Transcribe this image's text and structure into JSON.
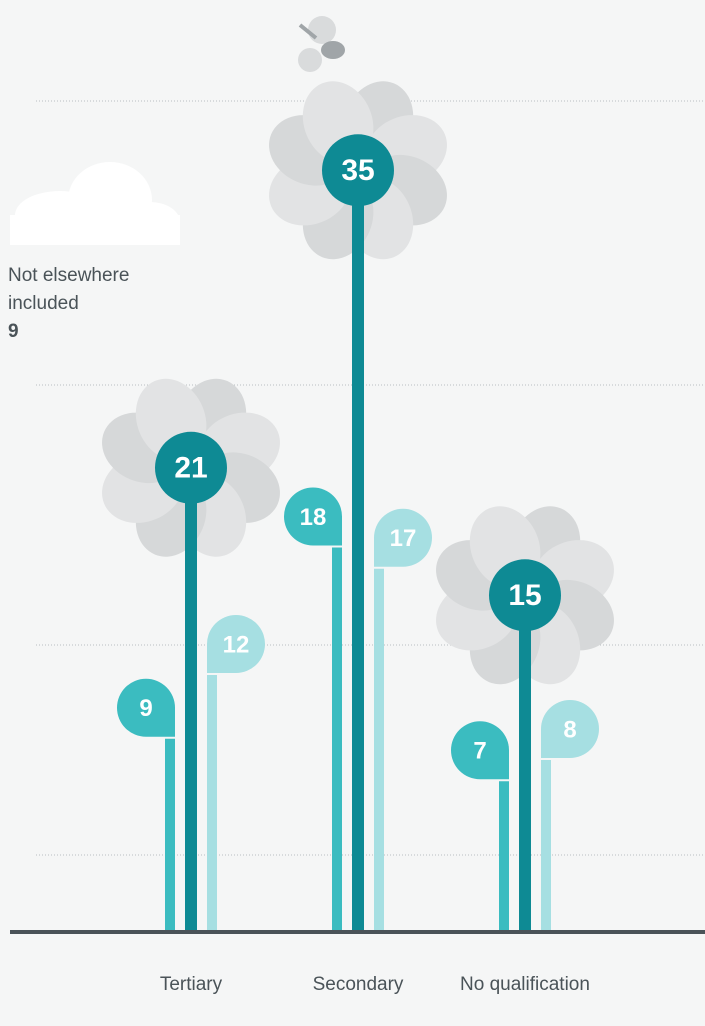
{
  "chart_data": {
    "type": "flower",
    "categories": [
      "Tertiary",
      "Secondary",
      "No qualification"
    ],
    "series": [
      {
        "color": "#3bbcc0",
        "values": [
          9,
          18,
          7
        ]
      },
      {
        "color": "#0e8a94",
        "values": [
          21,
          35,
          15
        ]
      },
      {
        "color": "#a6dfe2",
        "values": [
          12,
          17,
          8
        ]
      }
    ],
    "ylim": [
      0,
      40
    ],
    "annotation": {
      "text": "Not elsewhere included",
      "value": 9
    }
  }
}
